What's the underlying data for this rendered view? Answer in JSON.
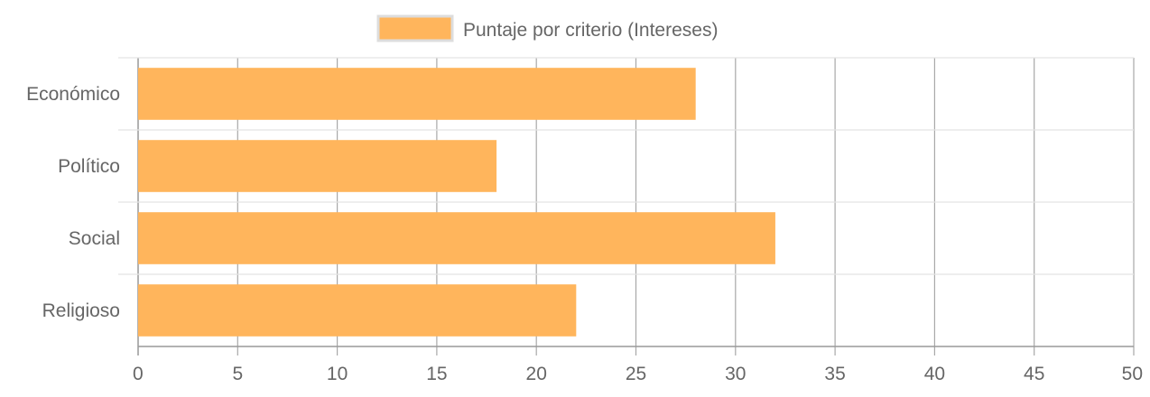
{
  "chart_data": {
    "type": "bar",
    "orientation": "horizontal",
    "categories": [
      "Económico",
      "Político",
      "Social",
      "Religioso"
    ],
    "series": [
      {
        "name": "Puntaje por criterio (Intereses)",
        "values": [
          28,
          18,
          32,
          22
        ],
        "color": "#FFB55C"
      }
    ],
    "xlim": [
      0,
      50
    ],
    "x_ticks": [
      "0",
      "5",
      "10",
      "15",
      "20",
      "25",
      "30",
      "35",
      "40",
      "45",
      "50"
    ],
    "grid": true,
    "legend_position": "top-center"
  }
}
